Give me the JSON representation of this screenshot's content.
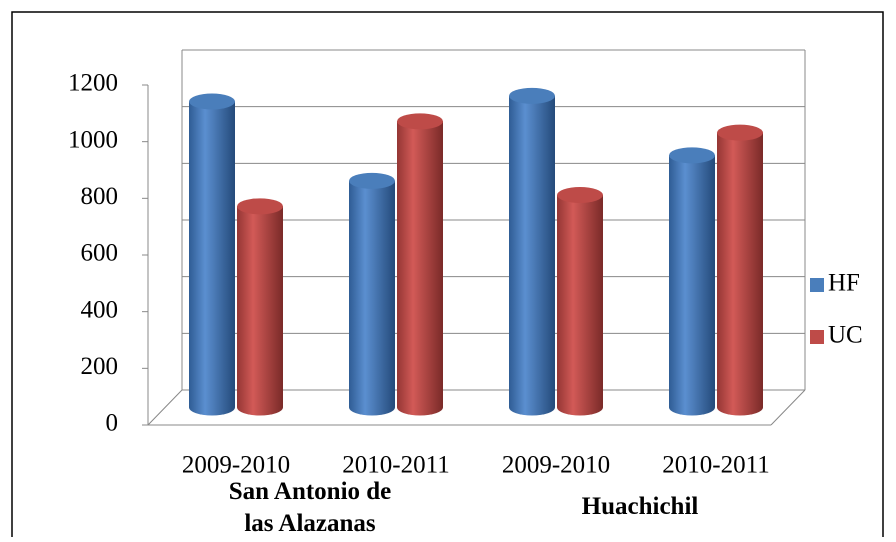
{
  "chart_data": {
    "type": "bar3d",
    "categories": [
      "2009-2010",
      "2010-2011",
      "2009-2010",
      "2010-2011"
    ],
    "groups": [
      {
        "label": "San Antonio de las Alazanas"
      },
      {
        "label": "Huachichil"
      }
    ],
    "series": [
      {
        "name": "HF",
        "color": "#4a7ebb",
        "values": [
          1080,
          800,
          1100,
          890
        ]
      },
      {
        "name": "UC",
        "color": "#be4b48",
        "values": [
          710,
          1010,
          750,
          970
        ]
      }
    ],
    "ylim": [
      0,
      1200
    ],
    "yticks": [
      0,
      200,
      400,
      600,
      800,
      1000,
      1200
    ],
    "grid": true,
    "legend": "right"
  }
}
